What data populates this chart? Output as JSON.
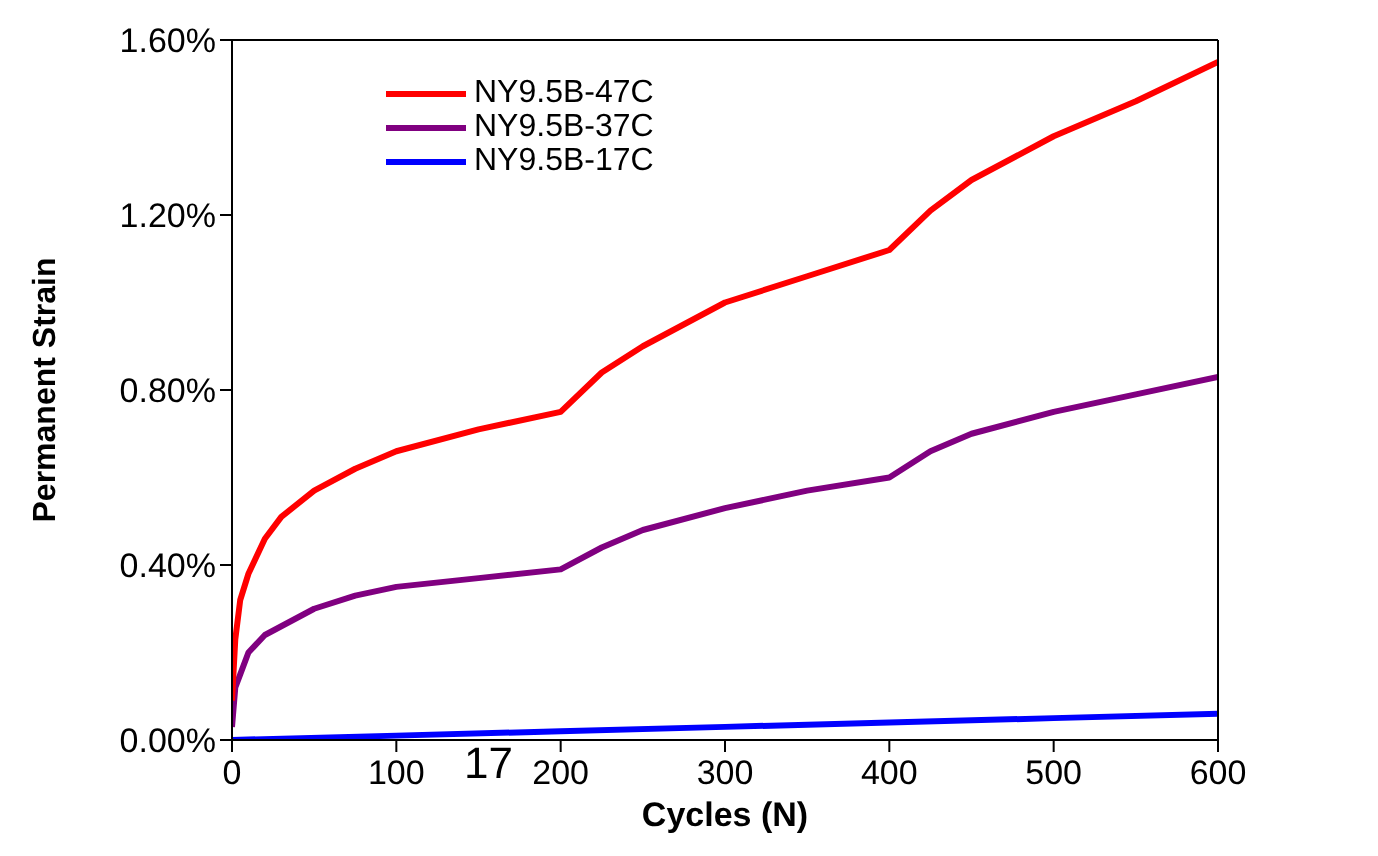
{
  "chart_data": {
    "type": "line",
    "xlabel": "Cycles (N)",
    "ylabel": "Permanent Strain",
    "xlim": [
      0,
      600
    ],
    "xticks": [
      0,
      100,
      200,
      300,
      400,
      500,
      600
    ],
    "ylim": [
      0,
      1.6
    ],
    "yticks": [
      {
        "value": 0,
        "label": "0.00%"
      },
      {
        "value": 0.4,
        "label": "0.40%"
      },
      {
        "value": 0.8,
        "label": "0.80%"
      },
      {
        "value": 1.2,
        "label": "1.20%"
      },
      {
        "value": 1.6,
        "label": "1.60%"
      }
    ],
    "grid": false,
    "legend": "top left",
    "marker": "none",
    "line_style": "solid",
    "annotations": [
      "17"
    ],
    "x": [
      0,
      2,
      5,
      10,
      20,
      30,
      50,
      75,
      100,
      150,
      200,
      225,
      250,
      300,
      350,
      400,
      425,
      450,
      500,
      550,
      600
    ],
    "series": [
      {
        "name": "NY9.5B-47C",
        "color": "#ff0000",
        "values": [
          0.09,
          0.23,
          0.32,
          0.38,
          0.46,
          0.51,
          0.57,
          0.62,
          0.66,
          0.71,
          0.75,
          0.84,
          0.9,
          1.0,
          1.06,
          1.12,
          1.21,
          1.28,
          1.38,
          1.46,
          1.55
        ]
      },
      {
        "name": "NY9.5B-37C",
        "color": "#800080",
        "values": [
          0.03,
          0.12,
          0.15,
          0.2,
          0.24,
          0.26,
          0.3,
          0.33,
          0.35,
          0.37,
          0.39,
          0.44,
          0.48,
          0.53,
          0.57,
          0.6,
          0.66,
          0.7,
          0.75,
          0.79,
          0.83
        ]
      },
      {
        "name": "NY9.5B-17C",
        "color": "#0000ff",
        "x": [
          0,
          100,
          200,
          300,
          400,
          500,
          600
        ],
        "values": [
          0,
          0.01,
          0.02,
          0.03,
          0.04,
          0.05,
          0.06
        ]
      }
    ]
  }
}
